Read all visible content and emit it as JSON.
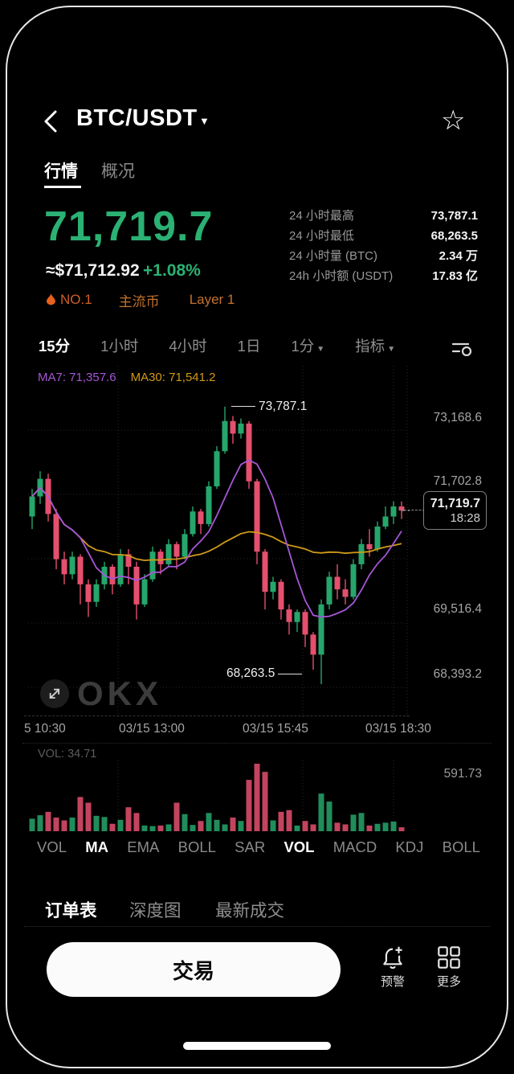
{
  "header": {
    "title": "BTC/USDT",
    "tab_quotes": "行情",
    "tab_overview": "概况"
  },
  "price": {
    "last": "71,719.7",
    "fiat": "≈$71,712.92",
    "change": "+1.08%"
  },
  "badges": {
    "rank": "NO.1",
    "tag1": "主流币",
    "tag2": "Layer 1"
  },
  "stats": [
    {
      "label": "24 小时最高",
      "value": "73,787.1"
    },
    {
      "label": "24 小时最低",
      "value": "68,263.5"
    },
    {
      "label": "24 小时量 (BTC)",
      "value": "2.34 万"
    },
    {
      "label": "24h 小时额 (USDT)",
      "value": "17.83 亿"
    }
  ],
  "timeframes": [
    {
      "label": "15分"
    },
    {
      "label": "1小时"
    },
    {
      "label": "4小时"
    },
    {
      "label": "1日"
    },
    {
      "label": "1分"
    },
    {
      "label": "指标"
    }
  ],
  "chart_data": {
    "type": "candlestick+volume",
    "ma_labels": [
      {
        "text": "MA7: 71,357.6"
      },
      {
        "text": "MA30: 71,541.2"
      }
    ],
    "y_axis_labels": [
      "73,168.6",
      "71,702.8",
      "69,516.4",
      "68,393.2"
    ],
    "x_axis_labels": [
      "5 10:30",
      "03/15 13:00",
      "03/15 15:45",
      "03/15 18:30"
    ],
    "high_annotation": "73,787.1",
    "low_annotation": "68,263.5",
    "price_tag": {
      "price": "71,719.7",
      "time": "18:28"
    },
    "volume_label": "VOL: 34.71",
    "volume_axis_max": "591.73",
    "ylim": [
      67560,
      74600
    ],
    "candles": [
      [
        71600,
        72150,
        71350,
        72000
      ],
      [
        72000,
        72500,
        71850,
        72350
      ],
      [
        72350,
        72450,
        71500,
        71650
      ],
      [
        71650,
        71750,
        70550,
        70750
      ],
      [
        70750,
        70900,
        70250,
        70450
      ],
      [
        70450,
        70900,
        70350,
        70800
      ],
      [
        70800,
        70850,
        69850,
        70250
      ],
      [
        70250,
        70350,
        69600,
        69900
      ],
      [
        69900,
        70350,
        69800,
        70250
      ],
      [
        70250,
        70700,
        70150,
        70600
      ],
      [
        70600,
        70650,
        70050,
        70250
      ],
      [
        70250,
        70950,
        70200,
        70850
      ],
      [
        70850,
        70950,
        70250,
        70600
      ],
      [
        70600,
        70700,
        69550,
        69850
      ],
      [
        69850,
        70450,
        69800,
        70350
      ],
      [
        70350,
        71000,
        70300,
        70900
      ],
      [
        70900,
        70950,
        70450,
        70650
      ],
      [
        70650,
        71150,
        70600,
        71050
      ],
      [
        71050,
        71100,
        70550,
        70800
      ],
      [
        70800,
        71350,
        70750,
        71250
      ],
      [
        71250,
        71800,
        71200,
        71700
      ],
      [
        71700,
        71750,
        71250,
        71450
      ],
      [
        71450,
        72300,
        71400,
        72200
      ],
      [
        72200,
        73000,
        72150,
        72900
      ],
      [
        72900,
        73787.1,
        72850,
        73500
      ],
      [
        73500,
        73600,
        73050,
        73250
      ],
      [
        73250,
        73550,
        73150,
        73450
      ],
      [
        73450,
        73500,
        72150,
        72300
      ],
      [
        72300,
        72350,
        70650,
        70900
      ],
      [
        70900,
        70950,
        69750,
        70100
      ],
      [
        70100,
        70400,
        69950,
        70300
      ],
      [
        70300,
        70350,
        69550,
        69750
      ],
      [
        69750,
        69850,
        69250,
        69500
      ],
      [
        69500,
        69750,
        69300,
        69700
      ],
      [
        69700,
        69750,
        69000,
        69250
      ],
      [
        69250,
        69300,
        68550,
        68850
      ],
      [
        68850,
        69950,
        68263.5,
        69850
      ],
      [
        69850,
        70500,
        69750,
        70400
      ],
      [
        70400,
        70650,
        69950,
        70150
      ],
      [
        70150,
        70350,
        69850,
        70000
      ],
      [
        70000,
        70750,
        69950,
        70650
      ],
      [
        70650,
        71150,
        70550,
        71050
      ],
      [
        71050,
        71350,
        70800,
        70950
      ],
      [
        70950,
        71500,
        70900,
        71400
      ],
      [
        71400,
        71800,
        71350,
        71600
      ],
      [
        71600,
        71900,
        71450,
        71800
      ],
      [
        71800,
        71900,
        71550,
        71719.7
      ]
    ],
    "volumes": [
      110,
      140,
      170,
      120,
      95,
      120,
      300,
      250,
      135,
      125,
      65,
      100,
      210,
      160,
      50,
      45,
      50,
      60,
      250,
      150,
      55,
      90,
      160,
      100,
      60,
      120,
      90,
      450,
      591.73,
      520,
      95,
      170,
      185,
      50,
      90,
      60,
      330,
      260,
      75,
      60,
      145,
      160,
      50,
      65,
      75,
      85,
      34.71
    ]
  },
  "indicators": [
    "VOL",
    "MA",
    "EMA",
    "BOLL",
    "SAR",
    "VOL",
    "MACD",
    "KDJ",
    "BOLL"
  ],
  "bottom_tabs": {
    "orders": "订单表",
    "depth": "深度图",
    "trades": "最新成交"
  },
  "actions": {
    "trade": "交易",
    "alert": "预警",
    "more": "更多"
  },
  "colors": {
    "up": "#26a66b",
    "down": "#e4506e",
    "price_green": "#2bb173",
    "ma7": "#a656d6",
    "ma30": "#cf9a18",
    "badge_orange": "#c4722e",
    "rank_orange": "#cf5f28",
    "flame": "#e8611c"
  }
}
